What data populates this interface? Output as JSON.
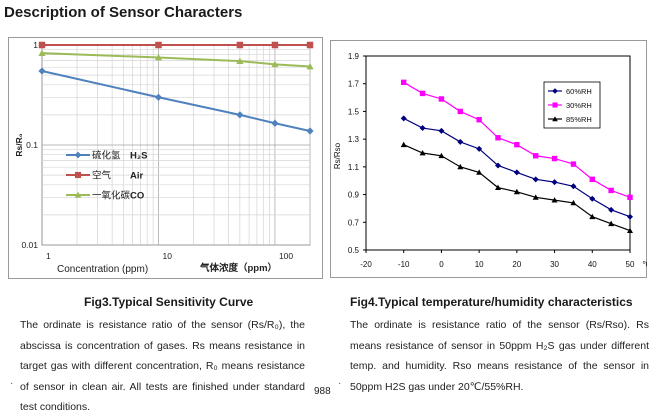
{
  "page": {
    "title": "Description of Sensor Characters",
    "page_number": "988"
  },
  "fig3": {
    "caption": "Fig3.Typical Sensitivity Curve",
    "description": "The ordinate is resistance ratio of the sensor (Rs/R₀), the abscissa is concentration of gases. Rs means resistance in target gas with different concentration, R₀ means resistance of sensor in clean air. All tests are finished under standard test conditions."
  },
  "fig4": {
    "caption": "Fig4.Typical temperature/humidity characteristics",
    "description": "The ordinate is resistance ratio of the sensor (Rs/Rso). Rs means resistance of sensor in 50ppm H₂S gas under different temp. and humidity. Rso means resistance of the sensor in 50ppm H2S gas under 20℃/55%RH."
  },
  "chart_data": [
    {
      "type": "line",
      "xscale": "log",
      "yscale": "log",
      "ylabel": "Rs/R₀",
      "xlabel_en": "Concentration (ppm)",
      "xlabel_cn": "气体浓度（ppm）",
      "xlim": [
        1,
        200
      ],
      "ylim": [
        0.01,
        1
      ],
      "x_ticks": [
        "1",
        "10",
        "100"
      ],
      "y_ticks": [
        "1",
        "0.1",
        "0.01"
      ],
      "grid": true,
      "legend_position": "left",
      "series": [
        {
          "cn": "硫化氢",
          "en": "H₂S",
          "color": "#4f81bd",
          "marker": "diamond",
          "x": [
            1,
            10,
            50,
            100,
            200
          ],
          "y": [
            0.55,
            0.3,
            0.2,
            0.165,
            0.138
          ]
        },
        {
          "cn": "空气",
          "en": "Air",
          "color": "#c0504d",
          "marker": "square",
          "x": [
            1,
            10,
            50,
            100,
            200
          ],
          "y": [
            1,
            1,
            1,
            1,
            1
          ]
        },
        {
          "cn": "一氧化碳",
          "en": "CO",
          "color": "#9bbb59",
          "marker": "triangle",
          "x": [
            1,
            10,
            50,
            100,
            200
          ],
          "y": [
            0.83,
            0.75,
            0.69,
            0.64,
            0.61
          ]
        }
      ]
    },
    {
      "type": "line",
      "ylabel": "Rs/Rso",
      "xlim": [
        -20,
        50
      ],
      "ylim": [
        0.5,
        1.9
      ],
      "x_ticks": [
        -20,
        -10,
        0,
        10,
        20,
        30,
        40,
        50
      ],
      "x_unit": "℃",
      "y_ticks": [
        "0.5",
        "0.7",
        "0.9",
        "1.1",
        "1.3",
        "1.5",
        "1.7",
        "1.9"
      ],
      "grid": false,
      "legend_position": "top-right",
      "series": [
        {
          "name": "60%RH",
          "color": "#00007f",
          "marker": "diamond",
          "x": [
            -10,
            -5,
            0,
            5,
            10,
            15,
            20,
            25,
            30,
            35,
            40,
            45,
            50
          ],
          "y": [
            1.45,
            1.38,
            1.36,
            1.28,
            1.23,
            1.11,
            1.06,
            1.01,
            0.99,
            0.96,
            0.87,
            0.79,
            0.74
          ]
        },
        {
          "name": "30%RH",
          "color": "#ff00ff",
          "marker": "square",
          "x": [
            -10,
            -5,
            0,
            5,
            10,
            15,
            20,
            25,
            30,
            35,
            40,
            45,
            50
          ],
          "y": [
            1.71,
            1.63,
            1.59,
            1.5,
            1.44,
            1.31,
            1.26,
            1.18,
            1.16,
            1.12,
            1.01,
            0.93,
            0.88
          ]
        },
        {
          "name": "85%RH",
          "color": "#000000",
          "marker": "triangle",
          "x": [
            -10,
            -5,
            0,
            5,
            10,
            15,
            20,
            25,
            30,
            35,
            40,
            45,
            50
          ],
          "y": [
            1.26,
            1.2,
            1.18,
            1.1,
            1.06,
            0.95,
            0.92,
            0.88,
            0.86,
            0.84,
            0.74,
            0.69,
            0.64
          ]
        }
      ]
    }
  ]
}
